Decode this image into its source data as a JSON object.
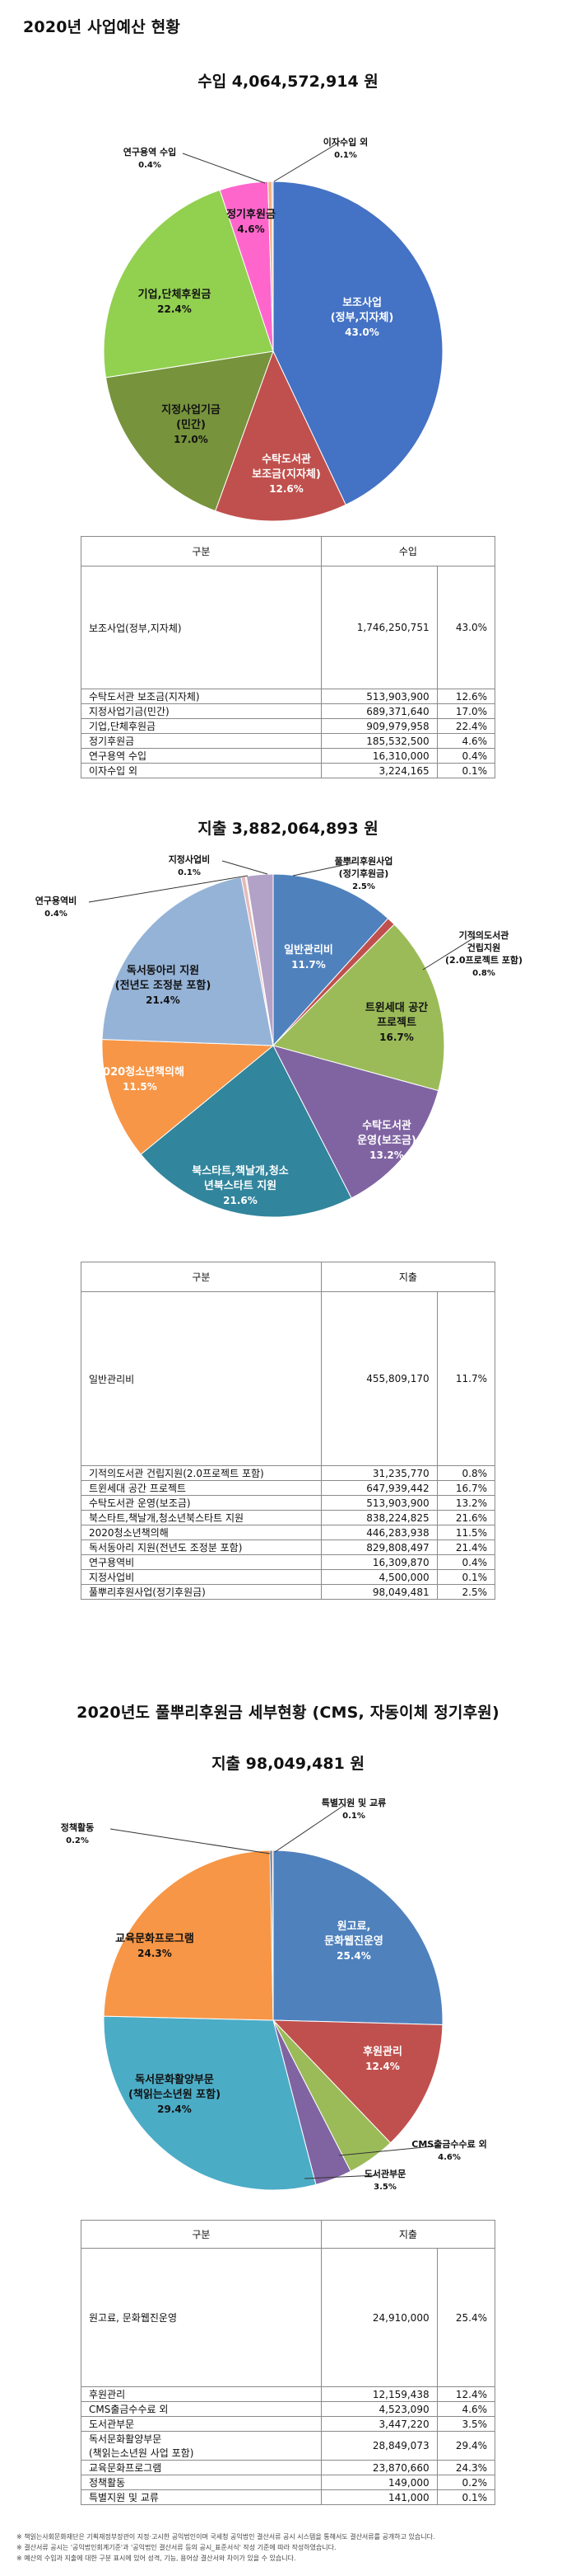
{
  "section1": {
    "title": "2020년 사업예산 현황",
    "income_title": "수입  4,064,572,914 원",
    "income_chart": {
      "type": "pie",
      "slices": [
        {
          "label": "보조사업\n(정부,지자체)\n43.0%",
          "value": 43.0,
          "color": "#4472c4"
        },
        {
          "label": "수탁도서관\n보조금(지자체)\n12.6%",
          "value": 12.6,
          "color": "#c0504d"
        },
        {
          "label": "지정사업기금\n(민간)\n17.0%",
          "value": 17.0,
          "color": "#77933c"
        },
        {
          "label": "기업,단체후원금\n22.4%",
          "value": 22.4,
          "color": "#92d050"
        },
        {
          "label": "정기후원금\n4.6%",
          "value": 4.6,
          "color": "#ff66cc"
        },
        {
          "label": "연구용역 수입\n0.4%",
          "value": 0.4,
          "color": "#f4b183"
        },
        {
          "label": "이자수입 외\n0.1%",
          "value": 0.1,
          "color": "#8064a2"
        }
      ]
    },
    "income_table": {
      "headers": [
        "구분",
        "수입"
      ],
      "rows": [
        [
          "보조사업(정부,지자체)",
          "1,746,250,751",
          "43.0%"
        ],
        [
          "수탁도서관 보조금(지자체)",
          "513,903,900",
          "12.6%"
        ],
        [
          "지정사업기금(민간)",
          "689,371,640",
          "17.0%"
        ],
        [
          "기업,단체후원금",
          "909,979,958",
          "22.4%"
        ],
        [
          "정기후원금",
          "185,532,500",
          "4.6%"
        ],
        [
          "연구용역 수입",
          "16,310,000",
          "0.4%"
        ],
        [
          "이자수입 외",
          "3,224,165",
          "0.1%"
        ]
      ]
    },
    "expense_title": "지출  3,882,064,893 원",
    "expense_chart": {
      "type": "pie",
      "slices": [
        {
          "label": "일반관리비\n11.7%",
          "value": 11.7,
          "color": "#4f81bd"
        },
        {
          "label": "기적의도서관\n건립지원\n(2.0프로젝트 포함)\n0.8%",
          "value": 0.8,
          "color": "#c0504d"
        },
        {
          "label": "트윈세대 공간\n프로젝트\n16.7%",
          "value": 16.7,
          "color": "#9bbb59"
        },
        {
          "label": "수탁도서관\n운영(보조금)\n13.2%",
          "value": 13.2,
          "color": "#8064a2"
        },
        {
          "label": "북스타트,책날개,청소\n년북스타트 지원\n21.6%",
          "value": 21.6,
          "color": "#31859c"
        },
        {
          "label": "2020청소년책의해\n11.5%",
          "value": 11.5,
          "color": "#f79646"
        },
        {
          "label": "독서동아리 지원\n(전년도 조정분 포함)\n21.4%",
          "value": 21.4,
          "color": "#95b3d7"
        },
        {
          "label": "연구용역비\n0.4%",
          "value": 0.4,
          "color": "#e6b9b8"
        },
        {
          "label": "지정사업비\n0.1%",
          "value": 0.1,
          "color": "#c3d69b"
        },
        {
          "label": "풀뿌리후원사업\n(정기후원금)\n2.5%",
          "value": 2.5,
          "color": "#b3a2c7"
        }
      ]
    },
    "expense_table": {
      "headers": [
        "구분",
        "지출"
      ],
      "rows": [
        [
          "일반관리비",
          "455,809,170",
          "11.7%"
        ],
        [
          "기적의도서관 건립지원(2.0프로젝트 포함)",
          "31,235,770",
          "0.8%"
        ],
        [
          "트윈세대 공간 프로젝트",
          "647,939,442",
          "16.7%"
        ],
        [
          "수탁도서관 운영(보조금)",
          "513,903,900",
          "13.2%"
        ],
        [
          "북스타트,책날개,청소년북스타트 지원",
          "838,224,825",
          "21.6%"
        ],
        [
          "2020청소년책의해",
          "446,283,938",
          "11.5%"
        ],
        [
          "독서동아리 지원(전년도 조정분 포함)",
          "829,808,497",
          "21.4%"
        ],
        [
          "연구용역비",
          "16,309,870",
          "0.4%"
        ],
        [
          "지정사업비",
          "4,500,000",
          "0.1%"
        ],
        [
          "풀뿌리후원사업(정기후원금)",
          "98,049,481",
          "2.5%"
        ]
      ]
    }
  },
  "section2": {
    "title": "2020년도 풀뿌리후원금 세부현황 (CMS, 자동이체 정기후원)",
    "expense_title": "지출  98,049,481 원",
    "chart": {
      "type": "pie",
      "slices": [
        {
          "label": "원고료,\n문화웹진운영\n25.4%",
          "value": 25.4,
          "color": "#4f81bd"
        },
        {
          "label": "후원관리\n12.4%",
          "value": 12.4,
          "color": "#c0504d"
        },
        {
          "label": "CMS출금수수료 외\n4.6%",
          "value": 4.6,
          "color": "#9bbb59"
        },
        {
          "label": "도서관부문\n3.5%",
          "value": 3.5,
          "color": "#8064a2"
        },
        {
          "label": "독서문화활양부문\n(책읽는소년원 포함)\n29.4%",
          "value": 29.4,
          "color": "#4bacc6"
        },
        {
          "label": "교육문화프로그램\n24.3%",
          "value": 24.3,
          "color": "#f79646"
        },
        {
          "label": "정책활동\n0.2%",
          "value": 0.2,
          "color": "#2c4d75"
        },
        {
          "label": "특별지원 및 교류\n0.1%",
          "value": 0.1,
          "color": "#772c2a"
        }
      ]
    },
    "table": {
      "headers": [
        "구분",
        "지출"
      ],
      "rows": [
        [
          "원고료, 문화웹진운영",
          "24,910,000",
          "25.4%"
        ],
        [
          "후원관리",
          "12,159,438",
          "12.4%"
        ],
        [
          "CMS출금수수료 외",
          "4,523,090",
          "4.6%"
        ],
        [
          "도서관부문",
          "3,447,220",
          "3.5%"
        ],
        [
          "독서문화활양부문\n(책읽는소년원 사업 포함)",
          "28,849,073",
          "29.4%"
        ],
        [
          "교육문화프로그램",
          "23,870,660",
          "24.3%"
        ],
        [
          "정책활동",
          "149,000",
          "0.2%"
        ],
        [
          "특별지원 및 교류",
          "141,000",
          "0.1%"
        ]
      ]
    }
  },
  "footnotes": [
    "※ 책읽는사회문화재단은 기획재정부장관이 지정·고시한 공익법인이며 국세청 공익법인 결산서류 공시 시스템을 통해서도 결산서류를 공개하고 있습니다.",
    "※ 결산서류 공시는 '공익법인회계기준'과 '공익법인 결산서류 등의 공시_표준서식' 작성 기준에 따라 작성하였습니다.",
    "※ 예산의 수입과 지출에 대한 구분 표시에 있어 성격, 기능, 용어상 결산서와 차이가 있을 수 있습니다."
  ]
}
